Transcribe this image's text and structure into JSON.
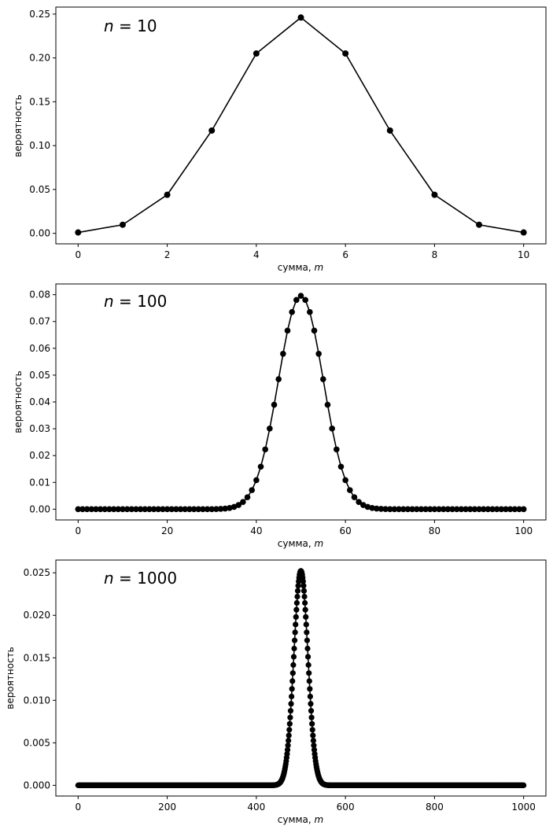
{
  "chart_data": [
    {
      "type": "line",
      "n": 10,
      "annotation": {
        "var": "n",
        "rest": " = 10"
      },
      "xlabel": {
        "text": "сумма, ",
        "var": "m"
      },
      "ylabel": "вероятность",
      "xlim": [
        -0.5,
        10.5
      ],
      "ylim": [
        -0.012,
        0.258
      ],
      "xticks": [
        0,
        2,
        4,
        6,
        8,
        10
      ],
      "xtick_labels": [
        "0",
        "2",
        "4",
        "6",
        "8",
        "10"
      ],
      "yticks": [
        0.0,
        0.05,
        0.1,
        0.15,
        0.2,
        0.25
      ],
      "ytick_labels": [
        "0.00",
        "0.05",
        "0.10",
        "0.15",
        "0.20",
        "0.25"
      ],
      "x": [
        0,
        1,
        2,
        3,
        4,
        5,
        6,
        7,
        8,
        9,
        10
      ],
      "values": [
        0.00098,
        0.00977,
        0.04395,
        0.11719,
        0.20508,
        0.24609,
        0.20508,
        0.11719,
        0.04395,
        0.00977,
        0.00098
      ],
      "color": "#000000",
      "marker": "circle",
      "grid": false
    },
    {
      "type": "line",
      "n": 100,
      "annotation": {
        "var": "n",
        "rest": " = 100"
      },
      "xlabel": {
        "text": "сумма, ",
        "var": "m"
      },
      "ylabel": "вероятность",
      "xlim": [
        -5,
        105
      ],
      "ylim": [
        -0.004,
        0.084
      ],
      "xticks": [
        0,
        20,
        40,
        60,
        80,
        100
      ],
      "xtick_labels": [
        "0",
        "20",
        "40",
        "60",
        "80",
        "100"
      ],
      "yticks": [
        0.0,
        0.01,
        0.02,
        0.03,
        0.04,
        0.05,
        0.06,
        0.07,
        0.08
      ],
      "ytick_labels": [
        "0.00",
        "0.01",
        "0.02",
        "0.03",
        "0.04",
        "0.05",
        "0.06",
        "0.07",
        "0.08"
      ],
      "values_rule": "binomial(n, 0.5) for m = 0..n",
      "peak": 0.0796,
      "color": "#000000",
      "marker": "circle",
      "grid": false
    },
    {
      "type": "line",
      "n": 1000,
      "annotation": {
        "var": "n",
        "rest": " = 1000"
      },
      "xlabel": {
        "text": "сумма, ",
        "var": "m"
      },
      "ylabel": "вероятность",
      "xlim": [
        -50,
        1050
      ],
      "ylim": [
        -0.00126,
        0.0265
      ],
      "xticks": [
        0,
        200,
        400,
        600,
        800,
        1000
      ],
      "xtick_labels": [
        "0",
        "200",
        "400",
        "600",
        "800",
        "1000"
      ],
      "yticks": [
        0.0,
        0.005,
        0.01,
        0.015,
        0.02,
        0.025
      ],
      "ytick_labels": [
        "0.000",
        "0.005",
        "0.010",
        "0.015",
        "0.020",
        "0.025"
      ],
      "values_rule": "binomial(n, 0.5) for m = 0..n",
      "peak": 0.0252,
      "color": "#000000",
      "marker": "circle",
      "grid": false
    }
  ]
}
